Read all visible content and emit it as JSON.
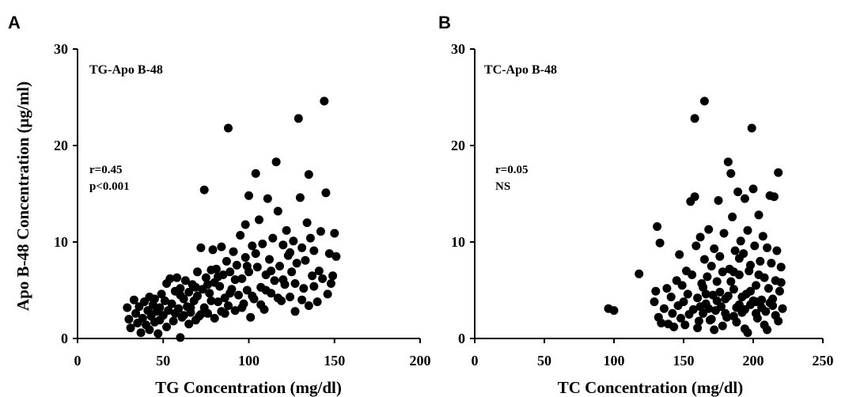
{
  "chart_data": [
    {
      "panel": "A",
      "type": "scatter",
      "title": "TG-Apo B-48",
      "annotations": [
        "r=0.45",
        "p<0.001"
      ],
      "xlabel": "TG Concentration (mg/dl)",
      "ylabel": "Apo B-48 Concentration (μg/ml)",
      "xlim": [
        0,
        200
      ],
      "ylim": [
        0,
        30
      ],
      "xticks": [
        0,
        50,
        100,
        150,
        200
      ],
      "yticks": [
        0,
        10,
        20,
        30
      ],
      "grid": false,
      "color": "#000000",
      "points": [
        [
          29,
          3.2
        ],
        [
          30,
          2.0
        ],
        [
          31,
          1.1
        ],
        [
          33,
          4.0
        ],
        [
          34,
          2.6
        ],
        [
          35,
          1.6
        ],
        [
          36,
          3.3
        ],
        [
          37,
          0.6
        ],
        [
          38,
          2.1
        ],
        [
          39,
          3.8
        ],
        [
          40,
          1.4
        ],
        [
          41,
          2.9
        ],
        [
          42,
          4.3
        ],
        [
          42,
          0.9
        ],
        [
          43,
          2.3
        ],
        [
          44,
          3.5
        ],
        [
          45,
          1.7
        ],
        [
          45,
          4.1
        ],
        [
          46,
          2.8
        ],
        [
          47,
          0.5
        ],
        [
          48,
          3.2
        ],
        [
          48,
          1.9
        ],
        [
          49,
          4.6
        ],
        [
          50,
          2.4
        ],
        [
          51,
          3.9
        ],
        [
          52,
          1.2
        ],
        [
          52,
          5.7
        ],
        [
          53,
          2.9
        ],
        [
          54,
          6.2
        ],
        [
          55,
          3.6
        ],
        [
          56,
          1.8
        ],
        [
          57,
          4.9
        ],
        [
          57,
          2.6
        ],
        [
          58,
          6.3
        ],
        [
          59,
          3.1
        ],
        [
          60,
          0.1
        ],
        [
          60,
          5.2
        ],
        [
          61,
          2.2
        ],
        [
          62,
          4.1
        ],
        [
          63,
          6.0
        ],
        [
          64,
          3.3
        ],
        [
          65,
          1.5
        ],
        [
          65,
          4.8
        ],
        [
          66,
          2.7
        ],
        [
          67,
          5.6
        ],
        [
          68,
          3.9
        ],
        [
          69,
          1.9
        ],
        [
          70,
          6.9
        ],
        [
          70,
          4.4
        ],
        [
          71,
          2.3
        ],
        [
          72,
          9.4
        ],
        [
          73,
          5.1
        ],
        [
          74,
          3.2
        ],
        [
          74,
          15.4
        ],
        [
          75,
          6.3
        ],
        [
          76,
          2.6
        ],
        [
          77,
          4.7
        ],
        [
          78,
          3.9
        ],
        [
          79,
          9.2
        ],
        [
          80,
          5.8
        ],
        [
          80,
          2.1
        ],
        [
          81,
          7.2
        ],
        [
          82,
          3.8
        ],
        [
          83,
          5.4
        ],
        [
          84,
          9.5
        ],
        [
          84,
          2.8
        ],
        [
          85,
          6.6
        ],
        [
          86,
          4.2
        ],
        [
          87,
          8.0
        ],
        [
          88,
          21.8
        ],
        [
          88,
          3.4
        ],
        [
          89,
          6.9
        ],
        [
          90,
          5.1
        ],
        [
          91,
          9.0
        ],
        [
          92,
          2.9
        ],
        [
          93,
          7.6
        ],
        [
          94,
          4.5
        ],
        [
          95,
          10.7
        ],
        [
          96,
          6.2
        ],
        [
          97,
          3.6
        ],
        [
          98,
          8.4
        ],
        [
          98,
          11.8
        ],
        [
          99,
          5.0
        ],
        [
          100,
          14.8
        ],
        [
          100,
          6.9
        ],
        [
          101,
          2.2
        ],
        [
          102,
          9.6
        ],
        [
          103,
          4.1
        ],
        [
          104,
          17.1
        ],
        [
          105,
          7.4
        ],
        [
          106,
          12.3
        ],
        [
          107,
          5.3
        ],
        [
          108,
          9.8
        ],
        [
          109,
          3.0
        ],
        [
          110,
          6.6
        ],
        [
          111,
          14.5
        ],
        [
          112,
          8.2
        ],
        [
          113,
          4.7
        ],
        [
          114,
          10.4
        ],
        [
          115,
          6.0
        ],
        [
          116,
          18.3
        ],
        [
          117,
          13.2
        ],
        [
          118,
          7.5
        ],
        [
          119,
          3.9
        ],
        [
          120,
          9.7
        ],
        [
          121,
          5.6
        ],
        [
          122,
          11.2
        ],
        [
          123,
          8.6
        ],
        [
          124,
          4.3
        ],
        [
          125,
          6.9
        ],
        [
          126,
          10.1
        ],
        [
          127,
          2.8
        ],
        [
          128,
          7.8
        ],
        [
          129,
          22.8
        ],
        [
          130,
          14.6
        ],
        [
          131,
          9.4
        ],
        [
          132,
          5.2
        ],
        [
          133,
          8.1
        ],
        [
          134,
          12.0
        ],
        [
          135,
          17.0
        ],
        [
          135,
          3.4
        ],
        [
          136,
          10.4
        ],
        [
          137,
          6.5
        ],
        [
          138,
          9.1
        ],
        [
          140,
          3.8
        ],
        [
          141,
          7.0
        ],
        [
          142,
          11.1
        ],
        [
          144,
          24.6
        ],
        [
          145,
          15.1
        ],
        [
          146,
          4.6
        ],
        [
          147,
          8.8
        ],
        [
          148,
          5.7
        ],
        [
          149,
          6.5
        ],
        [
          150,
          10.9
        ],
        [
          151,
          8.5
        ],
        [
          60,
          4.5
        ],
        [
          62,
          2.4
        ],
        [
          66,
          3.2
        ],
        [
          69,
          5.3
        ],
        [
          72,
          2.5
        ],
        [
          76,
          5.6
        ],
        [
          78,
          7.1
        ],
        [
          82,
          6.4
        ],
        [
          86,
          2.6
        ],
        [
          89,
          4.7
        ],
        [
          92,
          6.1
        ],
        [
          96,
          3.2
        ],
        [
          99,
          7.5
        ],
        [
          102,
          4.4
        ],
        [
          104,
          8.8
        ],
        [
          107,
          3.5
        ],
        [
          110,
          5.0
        ],
        [
          113,
          7.0
        ],
        [
          117,
          4.2
        ],
        [
          120,
          6.1
        ],
        [
          124,
          8.9
        ],
        [
          127,
          5.7
        ],
        [
          131,
          4.0
        ],
        [
          138,
          5.4
        ],
        [
          143,
          6.2
        ]
      ]
    },
    {
      "panel": "B",
      "type": "scatter",
      "title": "TC-Apo B-48",
      "annotations": [
        "r=0.05",
        "NS"
      ],
      "xlabel": "TC Concentration (mg/dl)",
      "ylabel": "",
      "xlim": [
        0,
        250
      ],
      "ylim": [
        0,
        30
      ],
      "xticks": [
        0,
        50,
        100,
        150,
        200,
        250
      ],
      "yticks": [
        0,
        10,
        20,
        30
      ],
      "grid": false,
      "color": "#000000",
      "points": [
        [
          96,
          3.1
        ],
        [
          100,
          2.9
        ],
        [
          118,
          6.7
        ],
        [
          129,
          3.8
        ],
        [
          130,
          4.9
        ],
        [
          131,
          11.6
        ],
        [
          132,
          2.2
        ],
        [
          133,
          9.9
        ],
        [
          134,
          1.6
        ],
        [
          136,
          3.1
        ],
        [
          138,
          5.2
        ],
        [
          139,
          1.5
        ],
        [
          141,
          4.3
        ],
        [
          142,
          2.6
        ],
        [
          143,
          1.2
        ],
        [
          145,
          6.0
        ],
        [
          146,
          3.4
        ],
        [
          147,
          8.7
        ],
        [
          148,
          2.1
        ],
        [
          149,
          5.5
        ],
        [
          150,
          3.8
        ],
        [
          151,
          1.4
        ],
        [
          152,
          7.0
        ],
        [
          153,
          4.6
        ],
        [
          154,
          2.5
        ],
        [
          155,
          14.2
        ],
        [
          156,
          6.6
        ],
        [
          157,
          3.0
        ],
        [
          158,
          14.7
        ],
        [
          158,
          22.8
        ],
        [
          159,
          9.6
        ],
        [
          160,
          4.2
        ],
        [
          161,
          1.8
        ],
        [
          162,
          10.5
        ],
        [
          163,
          5.7
        ],
        [
          164,
          2.6
        ],
        [
          165,
          24.6
        ],
        [
          165,
          8.2
        ],
        [
          166,
          3.6
        ],
        [
          167,
          6.4
        ],
        [
          168,
          11.3
        ],
        [
          169,
          1.9
        ],
        [
          170,
          7.5
        ],
        [
          171,
          4.5
        ],
        [
          172,
          9.3
        ],
        [
          173,
          2.9
        ],
        [
          174,
          5.9
        ],
        [
          175,
          14.3
        ],
        [
          176,
          8.5
        ],
        [
          177,
          3.3
        ],
        [
          178,
          6.9
        ],
        [
          179,
          10.9
        ],
        [
          180,
          4.1
        ],
        [
          181,
          2.2
        ],
        [
          182,
          18.3
        ],
        [
          183,
          7.2
        ],
        [
          184,
          17.1
        ],
        [
          185,
          12.6
        ],
        [
          186,
          5.1
        ],
        [
          187,
          9.1
        ],
        [
          188,
          3.2
        ],
        [
          189,
          15.2
        ],
        [
          190,
          6.6
        ],
        [
          191,
          10.1
        ],
        [
          192,
          2.7
        ],
        [
          193,
          8.8
        ],
        [
          194,
          14.5
        ],
        [
          195,
          4.6
        ],
        [
          196,
          11.2
        ],
        [
          197,
          7.0
        ],
        [
          198,
          3.5
        ],
        [
          199,
          21.8
        ],
        [
          200,
          15.5
        ],
        [
          201,
          9.6
        ],
        [
          202,
          5.5
        ],
        [
          203,
          2.1
        ],
        [
          204,
          12.8
        ],
        [
          205,
          8.0
        ],
        [
          206,
          4.0
        ],
        [
          207,
          10.6
        ],
        [
          208,
          6.3
        ],
        [
          209,
          2.8
        ],
        [
          210,
          9.4
        ],
        [
          211,
          5.2
        ],
        [
          212,
          14.8
        ],
        [
          213,
          7.8
        ],
        [
          214,
          3.4
        ],
        [
          215,
          14.7
        ],
        [
          216,
          6.0
        ],
        [
          217,
          9.1
        ],
        [
          218,
          17.2
        ],
        [
          219,
          4.9
        ],
        [
          220,
          7.4
        ],
        [
          221,
          3.1
        ],
        [
          160,
          1.1
        ],
        [
          164,
          5.3
        ],
        [
          168,
          3.1
        ],
        [
          172,
          0.9
        ],
        [
          176,
          4.8
        ],
        [
          180,
          2.6
        ],
        [
          184,
          5.9
        ],
        [
          188,
          1.7
        ],
        [
          192,
          4.3
        ],
        [
          196,
          0.6
        ],
        [
          200,
          3.9
        ],
        [
          204,
          6.6
        ],
        [
          208,
          1.4
        ],
        [
          212,
          3.7
        ],
        [
          216,
          2.4
        ],
        [
          220,
          5.8
        ],
        [
          170,
          2.0
        ],
        [
          174,
          3.9
        ],
        [
          178,
          1.3
        ],
        [
          182,
          4.4
        ],
        [
          186,
          2.3
        ],
        [
          190,
          3.5
        ],
        [
          194,
          1.0
        ],
        [
          198,
          4.9
        ],
        [
          202,
          2.6
        ],
        [
          206,
          3.2
        ],
        [
          210,
          0.9
        ],
        [
          214,
          4.1
        ],
        [
          218,
          1.8
        ],
        [
          162,
          3.3
        ],
        [
          166,
          4.6
        ],
        [
          186,
          6.9
        ],
        [
          190,
          8.3
        ],
        [
          194,
          3.0
        ],
        [
          198,
          7.6
        ],
        [
          202,
          3.8
        ]
      ]
    }
  ]
}
